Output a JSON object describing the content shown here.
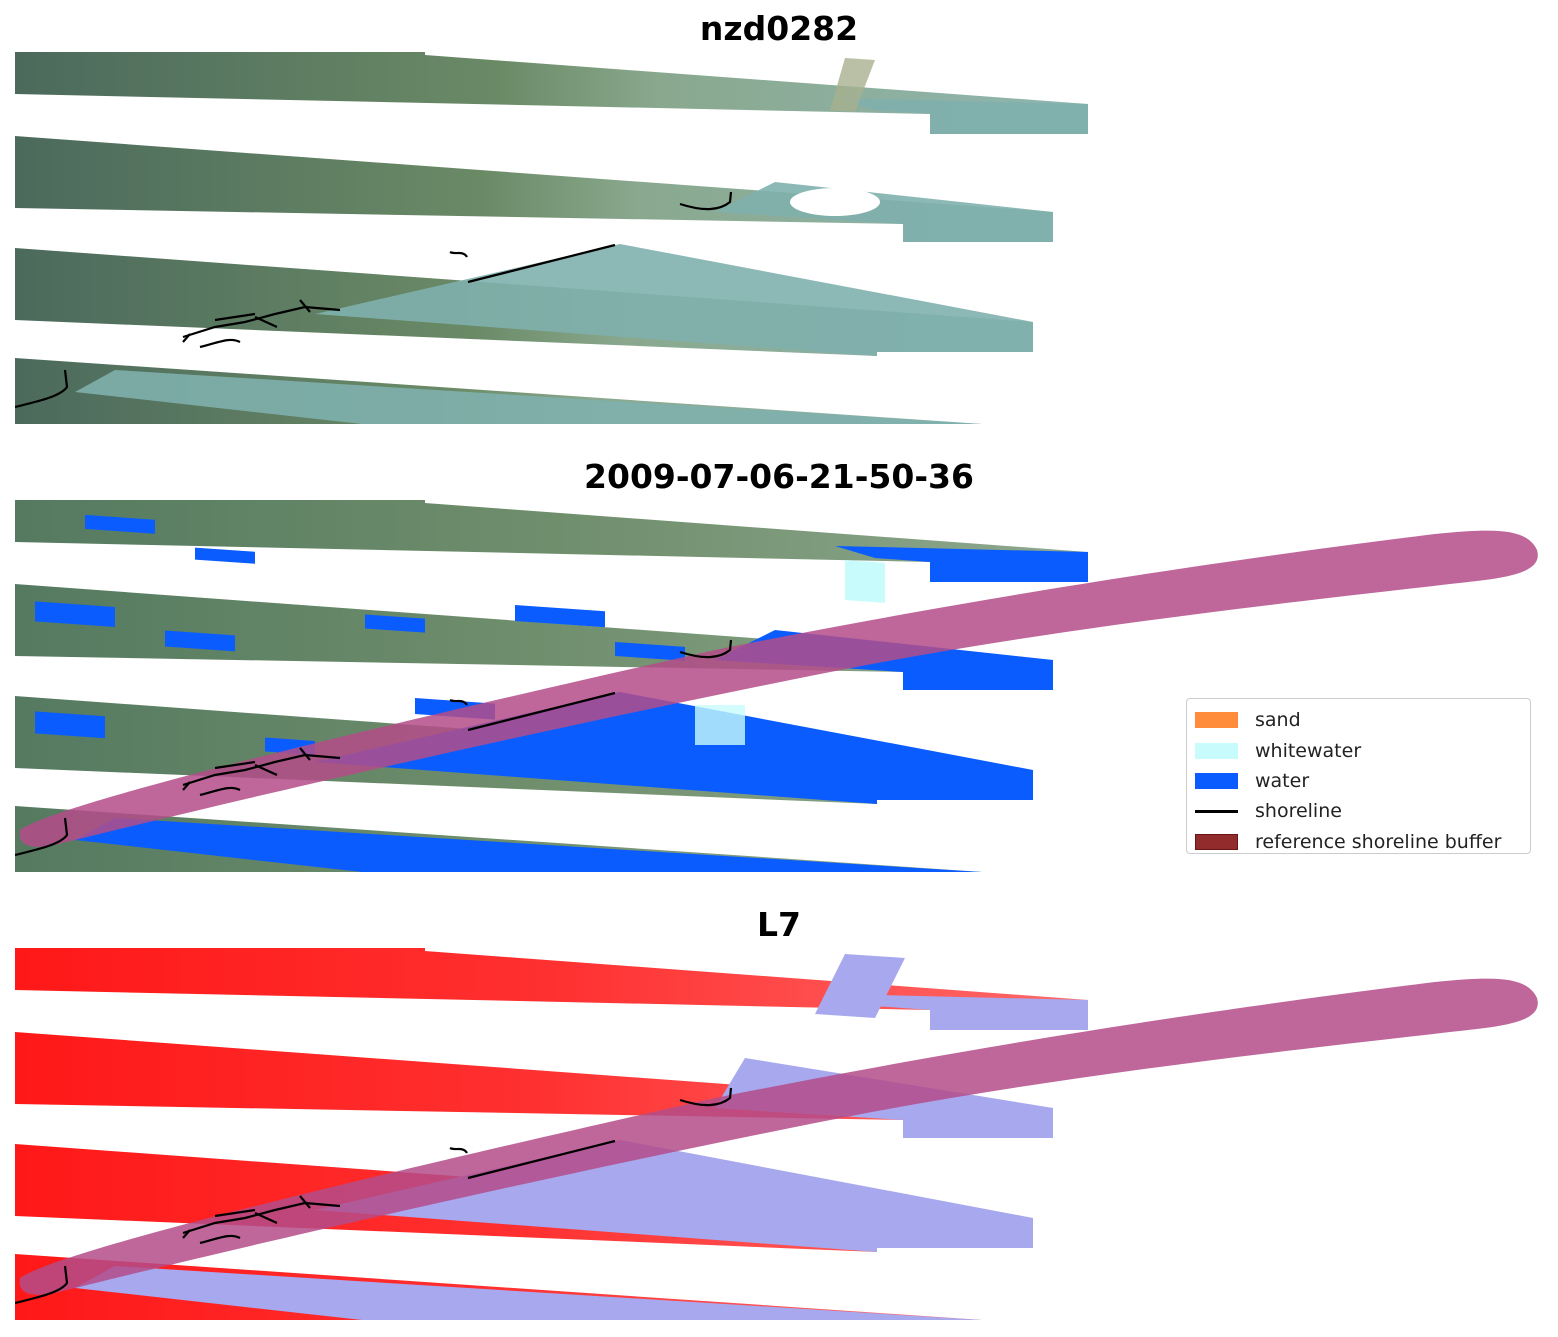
{
  "panels": [
    {
      "title": "nzd0282",
      "kind": "rgb"
    },
    {
      "title": "2009-07-06-21-50-36",
      "kind": "classified"
    },
    {
      "title": "L7",
      "kind": "index"
    }
  ],
  "legend": {
    "placement": "center-right of middle panel",
    "items": [
      {
        "label": "sand",
        "color": "#ff8c3a",
        "kind": "patch"
      },
      {
        "label": "whitewater",
        "color": "#c8fcfc",
        "kind": "patch"
      },
      {
        "label": "water",
        "color": "#0a5cff",
        "kind": "patch"
      },
      {
        "label": "shoreline",
        "color": "#000000",
        "kind": "line"
      },
      {
        "label": "reference shoreline buffer",
        "color": "#922b2b",
        "edge": "#7a1a1a",
        "kind": "patch"
      }
    ]
  },
  "colors": {
    "land_rgb": "#5f7e68",
    "land_light": "#8fa98f",
    "sea_rgb": "#7fb0ad",
    "sea_classified": "#0a5cff",
    "index_land": "#ff2020",
    "index_water": "#a8a8ee",
    "buffer_overlay": "#b44c8a"
  }
}
